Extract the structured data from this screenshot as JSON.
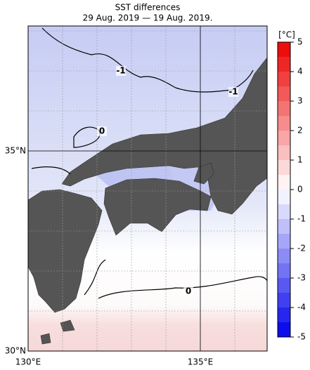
{
  "map": {
    "title": "SST differences",
    "subtitle": "29 Aug. 2019 — 19 Aug. 2019.",
    "lon_ticks": [
      {
        "value": 130,
        "label": "130°E"
      },
      {
        "value": 135,
        "label": "135°E"
      }
    ],
    "lat_ticks": [
      {
        "value": 35,
        "label": "35°N"
      },
      {
        "value": 30,
        "label": "30°N"
      }
    ],
    "colorbar": {
      "unit": "[°C]",
      "lim": [
        -5,
        5
      ],
      "ticks": [
        5,
        4,
        3,
        2,
        1,
        0,
        -1,
        -2,
        -3,
        -4,
        -5
      ]
    },
    "contour_labels": [
      -1,
      -1,
      0,
      0
    ]
  }
}
